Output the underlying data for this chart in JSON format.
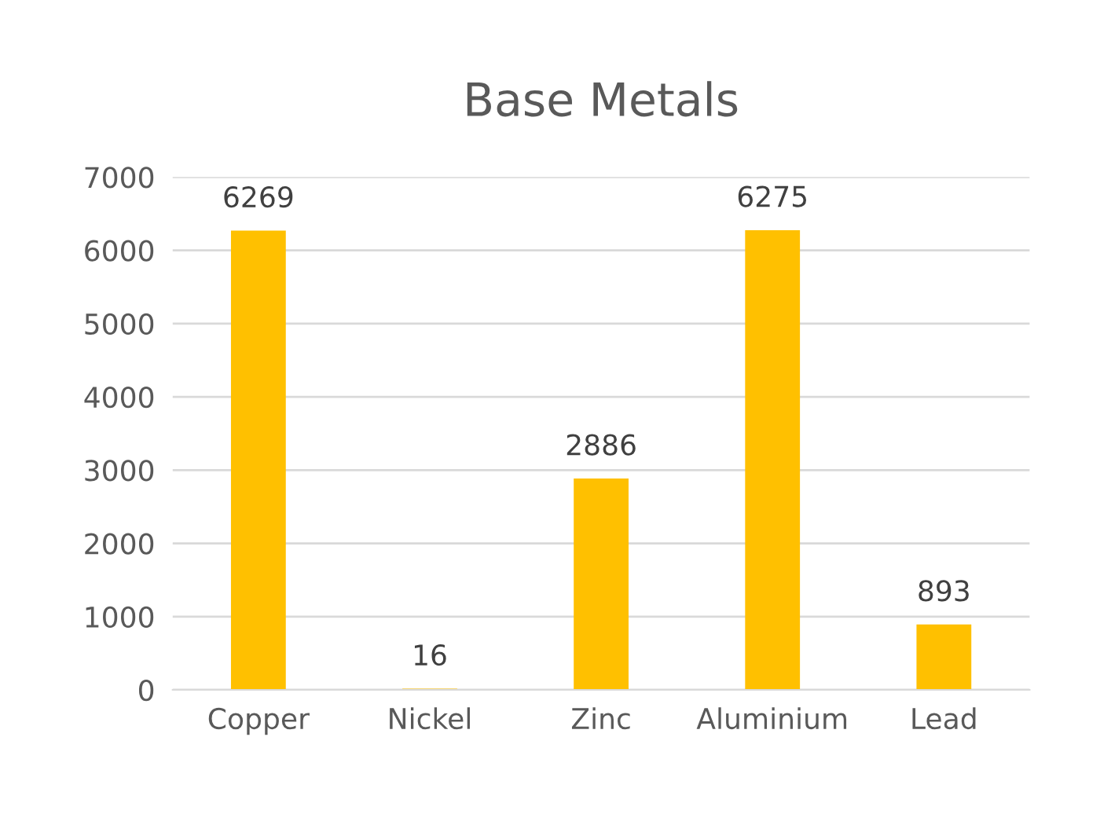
{
  "chart_data": {
    "type": "bar",
    "title": "Base Metals",
    "categories": [
      "Copper",
      "Nickel",
      "Zinc",
      "Aluminium",
      "Lead"
    ],
    "values": [
      6269,
      16,
      2886,
      6275,
      893
    ],
    "color": "#ffc000",
    "ylim": [
      0,
      7000
    ],
    "yticks": [
      0,
      1000,
      2000,
      3000,
      4000,
      5000,
      6000,
      7000
    ],
    "grid": "y",
    "data_labels": true,
    "legend": false
  }
}
